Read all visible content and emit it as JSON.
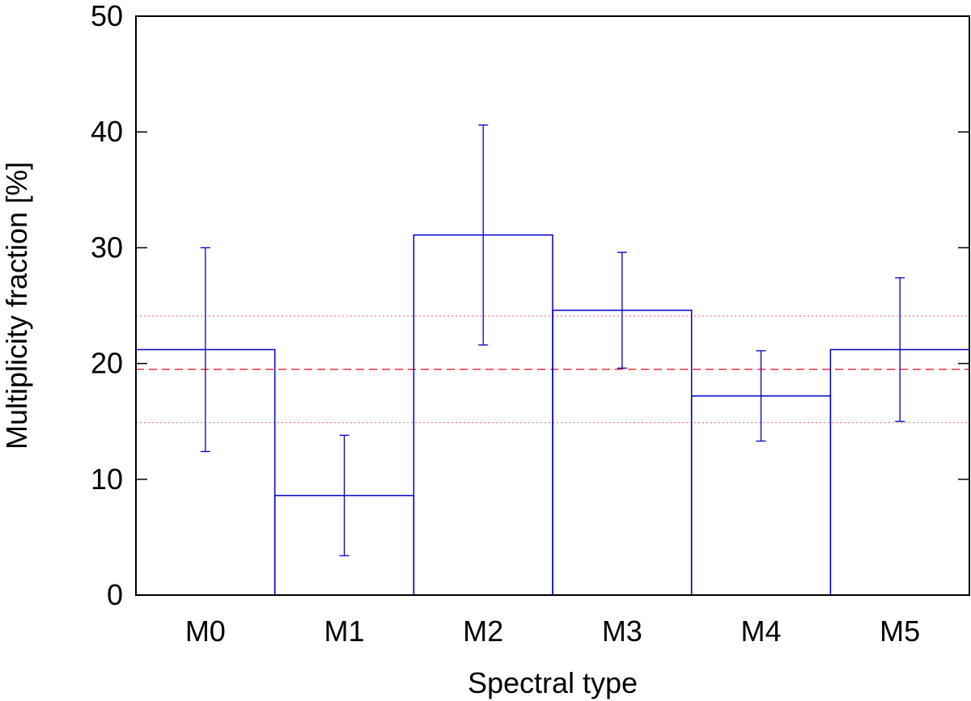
{
  "chart_data": {
    "type": "bar",
    "title": "",
    "xlabel": "Spectral type",
    "ylabel": "Multiplicity fraction [%]",
    "categories": [
      "M0",
      "M1",
      "M2",
      "M3",
      "M4",
      "M5"
    ],
    "values": [
      21.2,
      8.6,
      31.1,
      24.6,
      17.2,
      21.2
    ],
    "error_low": [
      12.4,
      3.4,
      21.6,
      19.6,
      13.3,
      15.0
    ],
    "error_high": [
      30.0,
      13.8,
      40.6,
      29.6,
      21.1,
      27.4
    ],
    "ylim": [
      0,
      50
    ],
    "yticks": [
      0,
      10,
      20,
      30,
      40,
      50
    ],
    "reference_lines": [
      {
        "value": 19.5,
        "style": "dashed"
      },
      {
        "value": 24.1,
        "style": "dotted"
      },
      {
        "value": 14.9,
        "style": "dotted"
      }
    ],
    "grid": false,
    "colors": {
      "bars": "#0000cc",
      "reference": "#e8323c",
      "reference_light": "#f08080",
      "frame": "#000000"
    }
  }
}
